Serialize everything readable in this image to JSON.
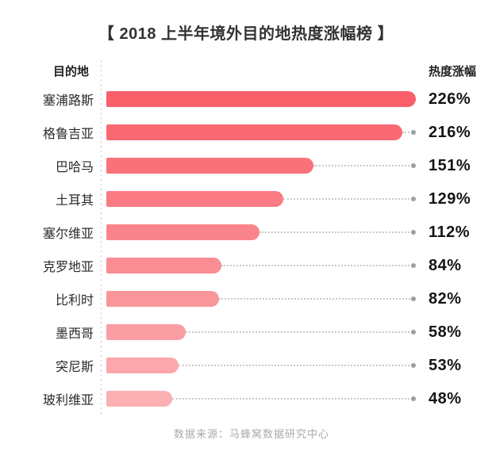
{
  "page": {
    "background": "#ffffff"
  },
  "title": "【 2018 上半年境外目的地热度涨幅榜 】",
  "columns": {
    "destination": "目的地",
    "growth": "热度涨幅"
  },
  "footer": "数据来源：马蜂窝数据研究中心",
  "chart_data": {
    "type": "bar",
    "orientation": "horizontal",
    "title": "2018 上半年境外目的地热度涨幅榜",
    "xlabel": "热度涨幅",
    "ylabel": "目的地",
    "categories": [
      "塞浦路斯",
      "格鲁吉亚",
      "巴哈马",
      "土耳其",
      "塞尔维亚",
      "克罗地亚",
      "比利时",
      "墨西哥",
      "突尼斯",
      "玻利维亚"
    ],
    "values": [
      226,
      216,
      151,
      129,
      112,
      84,
      82,
      58,
      53,
      48
    ],
    "value_labels": [
      "226%",
      "216%",
      "151%",
      "129%",
      "112%",
      "84%",
      "82%",
      "58%",
      "53%",
      "48%"
    ],
    "value_suffix": "%",
    "xlim": [
      0,
      226
    ],
    "grid": false,
    "legend": false,
    "bar_colors": [
      "#F9606A",
      "#F96972",
      "#F9727A",
      "#FA7B83",
      "#FA848B",
      "#FA8C93",
      "#FA959B",
      "#FB9EA3",
      "#FBA7AC",
      "#FBB0B4"
    ],
    "leader_line_color": "#c9c9c9",
    "leader_dot_color": "#9f9f9f",
    "axis_line_color": "#cccccc"
  }
}
